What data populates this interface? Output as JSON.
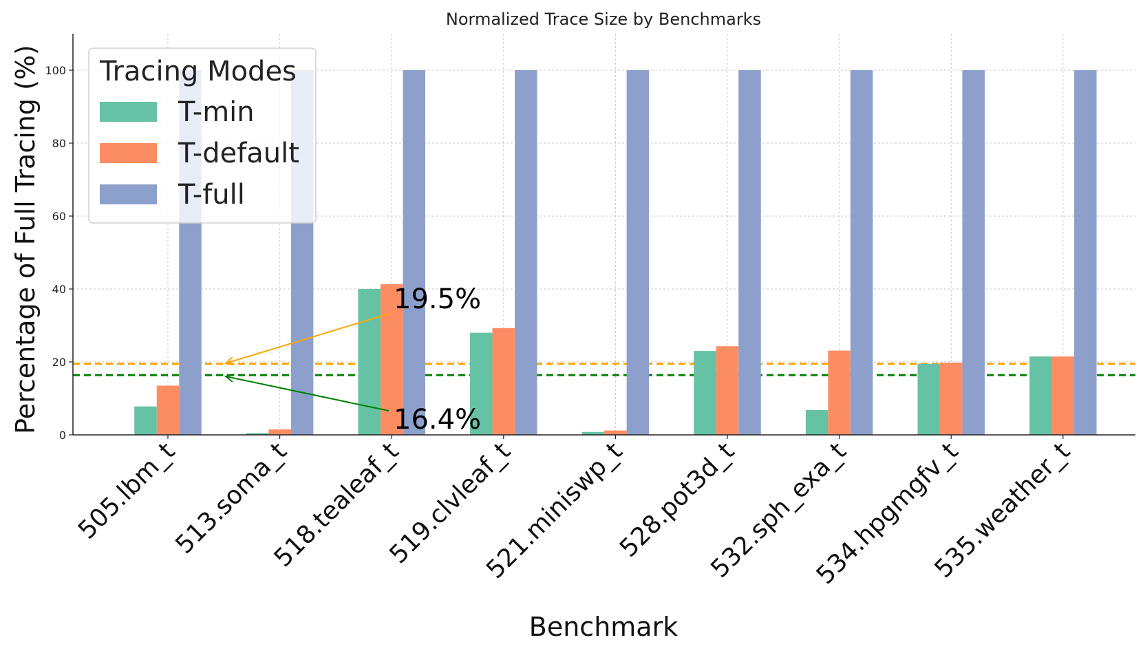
{
  "chart_data": {
    "type": "bar",
    "title": "Normalized Trace Size by Benchmarks",
    "xlabel": "Benchmark",
    "ylabel": "Percentage of Full Tracing (%)",
    "ylim": [
      0,
      110
    ],
    "yticks": [
      0,
      20,
      40,
      60,
      80,
      100
    ],
    "grid": true,
    "categories": [
      "505.lbm_t",
      "513.soma_t",
      "518.tealeaf_t",
      "519.clvleaf_t",
      "521.miniswp_t",
      "528.pot3d_t",
      "532.sph_exa_t",
      "534.hpgmgfv_t",
      "535.weather_t"
    ],
    "series": [
      {
        "name": "T-min",
        "color": "#66c2a5",
        "values": [
          7.8,
          0.5,
          40,
          28,
          0.8,
          23,
          6.8,
          19.5,
          21.5
        ]
      },
      {
        "name": "T-default",
        "color": "#fc8d62",
        "values": [
          13.5,
          1.5,
          41.3,
          29.3,
          1.2,
          24.3,
          23.1,
          19.8,
          21.5
        ]
      },
      {
        "name": "T-full",
        "color": "#8da0cb",
        "values": [
          100,
          100,
          100,
          100,
          100,
          100,
          100,
          100,
          100
        ]
      }
    ],
    "legend": {
      "title": "Tracing Modes",
      "location": "top-left"
    },
    "reference_lines": [
      {
        "value": 19.5,
        "label": "19.5%",
        "color": "#ffa500"
      },
      {
        "value": 16.4,
        "label": "16.4%",
        "color": "#008000"
      }
    ]
  }
}
